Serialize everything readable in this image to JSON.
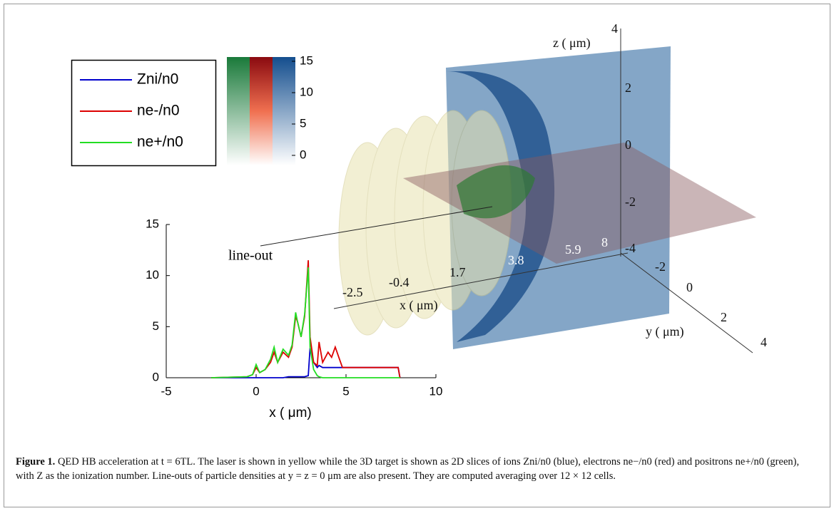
{
  "chart_data": {
    "type": "line",
    "xlabel": "x ( μm)",
    "annotation": "line-out",
    "xlim": [
      -5,
      10
    ],
    "ylim": [
      0,
      15
    ],
    "xticks": [
      -5,
      0,
      5,
      10
    ],
    "yticks": [
      0,
      5,
      10,
      15
    ],
    "legend": "top-left",
    "x": [
      -2.5,
      -0.5,
      -0.2,
      0,
      0.2,
      0.5,
      0.8,
      1.0,
      1.2,
      1.5,
      1.8,
      2.0,
      2.2,
      2.3,
      2.5,
      2.7,
      2.9,
      3.0,
      3.2,
      3.4,
      3.5,
      3.7,
      4.0,
      4.2,
      4.4,
      4.6,
      4.8,
      5.0,
      6,
      7,
      7.9,
      8.0
    ],
    "series": [
      {
        "name": "Zni/n0",
        "color": "#0000cc",
        "values": [
          0,
          0,
          0,
          0,
          0,
          0,
          0,
          0,
          0,
          0,
          0.1,
          0.1,
          0.1,
          0.1,
          0.1,
          0.1,
          0.2,
          2.9,
          1.5,
          1.0,
          1.2,
          1.0,
          1.0,
          1.0,
          1.0,
          1.0,
          1.0,
          1.0,
          1.0,
          1.0,
          1.0,
          0
        ]
      },
      {
        "name": "ne-/n0",
        "color": "#dd0000",
        "values": [
          0,
          0.1,
          0.3,
          1.0,
          0.5,
          0.8,
          1.5,
          2.5,
          1.5,
          2.5,
          2.0,
          3.0,
          6.0,
          5.5,
          4.0,
          6.0,
          11.5,
          4.0,
          1.5,
          1.2,
          3.5,
          1.5,
          2.5,
          2.0,
          3.0,
          2.0,
          1.0,
          1.0,
          1.0,
          1.0,
          1.0,
          0
        ]
      },
      {
        "name": "ne+/n0",
        "color": "#22dd22",
        "values": [
          0,
          0.1,
          0.3,
          1.3,
          0.5,
          0.8,
          1.8,
          3.0,
          1.5,
          2.8,
          2.2,
          3.2,
          6.4,
          5.5,
          4.0,
          6.2,
          10.8,
          3.0,
          0.8,
          0.2,
          0.1,
          0,
          0,
          0,
          0,
          0,
          0,
          0,
          0,
          0,
          0,
          0
        ]
      }
    ]
  },
  "colorbar": {
    "clim": [
      0,
      15
    ],
    "ticks": [
      0,
      5,
      10,
      15
    ]
  },
  "render3d": {
    "labels": [
      "z ( μm)",
      "4",
      "2",
      "0",
      "-2",
      "-4",
      "-2.5",
      "-0.4",
      "1.7",
      "3.8",
      "5.9",
      "8",
      "x ( μm)",
      "-2",
      "0",
      "2",
      "4",
      "y ( μm)"
    ]
  },
  "caption": {
    "label": "Figure 1.",
    "text": "QED HB acceleration at t = 6TL. The laser is shown in yellow while the 3D target is shown as 2D slices of ions Zni/n0 (blue), electrons ne−/n0 (red) and positrons ne+/n0 (green), with Z as the ionization number. Line-outs of particle densities at y = z = 0 μm are also present. They are computed averaging over 12 × 12 cells."
  }
}
